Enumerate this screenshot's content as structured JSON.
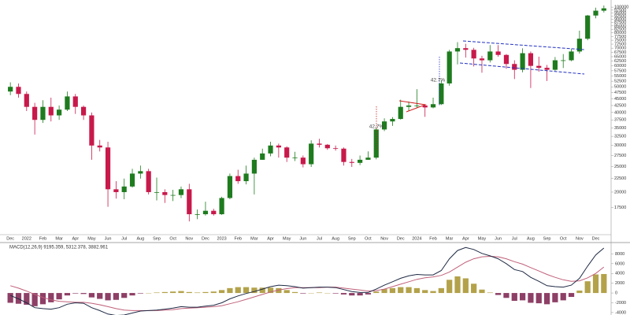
{
  "chart_data": [
    {
      "type": "candlestick",
      "log": true,
      "categories": [
        "Dec",
        null,
        "2022",
        null,
        "Feb",
        null,
        "Mar",
        null,
        "Apr",
        null,
        "May",
        null,
        "Jun",
        null,
        "Jul",
        null,
        "Aug",
        null,
        "Sep",
        null,
        "Oct",
        null,
        "Nov",
        null,
        "Dec",
        null,
        "2023",
        null,
        "Feb",
        null,
        "Mar",
        null,
        "Apr",
        null,
        "May",
        null,
        "Jun",
        null,
        "Jul",
        null,
        "Aug",
        null,
        "Sep",
        null,
        "Oct",
        null,
        "Nov",
        null,
        "Dec",
        null,
        "2024",
        null,
        "Feb",
        null,
        "Mar",
        null,
        "Apr",
        null,
        "May",
        null,
        "Jun",
        null,
        "Jul",
        null,
        "Aug",
        null,
        "Sep",
        null,
        "Oct",
        null,
        "Nov",
        null,
        "Dec",
        null
      ],
      "open": [
        48000,
        50000,
        47000,
        42000,
        37500,
        42000,
        39000,
        41000,
        46000,
        42000,
        39000,
        30000,
        29500,
        20500,
        20000,
        21000,
        23500,
        24000,
        20000,
        20000,
        19500,
        19500,
        20500,
        16500,
        16500,
        17000,
        16500,
        19000,
        23000,
        22000,
        23500,
        26500,
        28000,
        30000,
        29500,
        27000,
        27000,
        25500,
        30500,
        30200,
        29300,
        29200,
        26000,
        25800,
        26500,
        27000,
        34500,
        37000,
        37800,
        42000,
        42500,
        42500,
        41800,
        43000,
        51500,
        68000,
        70000,
        69000,
        64000,
        63000,
        68000,
        66000,
        61000,
        58000,
        67000,
        60000,
        59000,
        58000,
        63000,
        63000,
        68000,
        76000,
        93000,
        97000
      ],
      "high": [
        52000,
        51500,
        48000,
        43500,
        44500,
        45500,
        42500,
        48000,
        47000,
        42500,
        40000,
        31500,
        31000,
        22000,
        22500,
        24500,
        25200,
        24500,
        22700,
        20500,
        20400,
        21000,
        21500,
        17200,
        18400,
        17300,
        19200,
        23500,
        24300,
        25200,
        27000,
        29200,
        31000,
        30500,
        29800,
        28400,
        27500,
        31400,
        31800,
        30400,
        30000,
        29500,
        26700,
        27500,
        28500,
        35200,
        38000,
        38400,
        44700,
        44000,
        49000,
        43000,
        45500,
        52900,
        69000,
        73800,
        72700,
        70200,
        65500,
        71900,
        71900,
        66500,
        63000,
        69900,
        68000,
        65000,
        60500,
        64800,
        66500,
        69500,
        81500,
        93500,
        99600,
        101500
      ],
      "low": [
        46500,
        45500,
        40500,
        33000,
        36500,
        37000,
        37500,
        40500,
        39500,
        37500,
        26500,
        28500,
        17600,
        18900,
        18800,
        20800,
        22500,
        19600,
        18600,
        18200,
        18500,
        19000,
        15500,
        15800,
        16300,
        16300,
        16400,
        18800,
        21500,
        21400,
        19600,
        26500,
        27300,
        27000,
        26000,
        26200,
        24800,
        24900,
        29500,
        28900,
        28700,
        25200,
        24900,
        25300,
        26500,
        26600,
        34000,
        35600,
        37600,
        40500,
        41500,
        38500,
        41500,
        42700,
        50500,
        60800,
        64500,
        59700,
        56500,
        61800,
        65000,
        58500,
        53500,
        56700,
        49500,
        57000,
        52600,
        57500,
        58900,
        62500,
        66800,
        75000,
        90800,
        95500
      ],
      "close": [
        50000,
        47000,
        42000,
        37500,
        42000,
        39000,
        41000,
        46000,
        42000,
        39000,
        30000,
        29500,
        20500,
        20000,
        21000,
        23500,
        24000,
        20000,
        20000,
        19500,
        19500,
        20500,
        16500,
        16500,
        17000,
        16500,
        19000,
        23000,
        22000,
        23500,
        26500,
        28000,
        30000,
        29500,
        27000,
        27000,
        25500,
        30500,
        30200,
        29300,
        29200,
        26000,
        25800,
        26500,
        27000,
        34500,
        37000,
        37800,
        42000,
        42500,
        42500,
        41800,
        43000,
        51500,
        68000,
        70000,
        69000,
        64000,
        63000,
        68000,
        66000,
        61000,
        58000,
        67000,
        60000,
        59000,
        58000,
        63000,
        63000,
        68000,
        76000,
        93000,
        97000,
        99000
      ],
      "up_color": "#1e7b1e",
      "down_color": "#c8194b",
      "ylim": [
        14000,
        105000
      ],
      "yticks": [
        17500,
        20000,
        22500,
        25000,
        27500,
        30000,
        32500,
        35000,
        37500,
        40000,
        42500,
        45000,
        47500,
        50000,
        52500,
        55000,
        57500,
        60000,
        62500,
        65000,
        67500,
        70000,
        72500,
        75000,
        77500,
        80000,
        82500,
        85000,
        87500,
        90000,
        92500,
        95000,
        97500,
        100000
      ],
      "annotations": [
        "42.7%",
        "42.7%"
      ]
    },
    {
      "type": "macd",
      "label": "MACD(12,26,9) 9195.359, 5312.378, 3882.961",
      "macd": {
        "color": "#1f2a44",
        "values": [
          -500,
          -1200,
          -2000,
          -3000,
          -3200,
          -3300,
          -3000,
          -2300,
          -2000,
          -2100,
          -3000,
          -3600,
          -4300,
          -4600,
          -4500,
          -4100,
          -3700,
          -3600,
          -3500,
          -3300,
          -3100,
          -2800,
          -2900,
          -2900,
          -2700,
          -2500,
          -2000,
          -1200,
          -600,
          -100,
          300,
          800,
          1300,
          1600,
          1500,
          1300,
          1000,
          1100,
          1200,
          1200,
          1100,
          700,
          300,
          100,
          100,
          800,
          1600,
          2300,
          3000,
          3500,
          3800,
          3700,
          3700,
          4600,
          7000,
          8700,
          9300,
          8900,
          8100,
          7600,
          7000,
          6000,
          4800,
          4400,
          3200,
          2400,
          1500,
          1300,
          1200,
          1600,
          3000,
          5500,
          7800,
          9195.359
        ]
      },
      "signal": {
        "color": "#c0607a",
        "values": [
          1500,
          1000,
          400,
          -300,
          -900,
          -1400,
          -1700,
          -1800,
          -1900,
          -1900,
          -2100,
          -2400,
          -2800,
          -3200,
          -3500,
          -3600,
          -3600,
          -3600,
          -3600,
          -3500,
          -3400,
          -3200,
          -3100,
          -3000,
          -2900,
          -2800,
          -2600,
          -2200,
          -1800,
          -1300,
          -800,
          -300,
          200,
          600,
          900,
          1100,
          1100,
          1100,
          1100,
          1200,
          1200,
          1000,
          800,
          600,
          400,
          500,
          800,
          1300,
          1800,
          2300,
          2800,
          3100,
          3300,
          3600,
          4300,
          5300,
          6300,
          7000,
          7400,
          7500,
          7400,
          7000,
          6400,
          5900,
          5200,
          4500,
          3800,
          3200,
          2700,
          2400,
          2500,
          3100,
          4000,
          5312.378
        ]
      },
      "histogram": {
        "up_color": "#b3a24a",
        "down_color": "#8e3f66",
        "values": [
          -2000,
          -2200,
          -2400,
          -2700,
          -2300,
          -1900,
          -1300,
          -500,
          -100,
          -200,
          -900,
          -1200,
          -1500,
          -1400,
          -1000,
          -500,
          -100,
          0,
          100,
          200,
          300,
          400,
          200,
          100,
          200,
          300,
          600,
          1000,
          1200,
          1200,
          1100,
          1100,
          1100,
          1000,
          600,
          200,
          -100,
          0,
          100,
          0,
          -100,
          -300,
          -500,
          -500,
          -300,
          300,
          800,
          1000,
          1200,
          1200,
          1000,
          600,
          400,
          1000,
          2700,
          3400,
          3000,
          1900,
          700,
          100,
          -400,
          -1000,
          -1600,
          -1500,
          -2000,
          -2100,
          -2300,
          -1900,
          -1500,
          -800,
          500,
          2400,
          3800,
          3882.961
        ]
      },
      "ylim": [
        -4500,
        10000
      ],
      "yticks": [
        -4000,
        -2000,
        0,
        2000,
        4000,
        6000,
        8000
      ]
    }
  ]
}
